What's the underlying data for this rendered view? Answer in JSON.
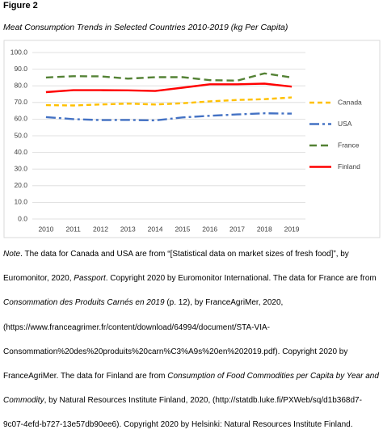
{
  "figure_label": "Figure 2",
  "figure_title": "Meat Consumption Trends in Selected Countries 2010-2019 (kg Per Capita)",
  "chart_data": {
    "type": "line",
    "categories": [
      "2010",
      "2011",
      "2012",
      "2013",
      "2014",
      "2015",
      "2016",
      "2017",
      "2018",
      "2019"
    ],
    "series": [
      {
        "name": "Canada",
        "color": "#ffc000",
        "dash": "6 4",
        "values": [
          68.4,
          68.2,
          68.8,
          69.3,
          68.8,
          69.5,
          70.7,
          71.5,
          72.0,
          73.0
        ]
      },
      {
        "name": "USA",
        "color": "#4472c4",
        "dash": "12 4 3 4",
        "values": [
          61.2,
          60.0,
          59.4,
          59.5,
          59.2,
          61.0,
          62.0,
          62.8,
          63.5,
          63.3
        ]
      },
      {
        "name": "France",
        "color": "#548235",
        "dash": "9 5",
        "values": [
          85.0,
          85.8,
          85.7,
          84.3,
          85.2,
          85.2,
          83.4,
          83.1,
          87.5,
          85.0
        ]
      },
      {
        "name": "Finland",
        "color": "#ff0000",
        "dash": "none",
        "values": [
          76.2,
          77.4,
          77.4,
          77.3,
          76.9,
          78.9,
          80.9,
          80.9,
          81.3,
          79.5
        ]
      }
    ],
    "ylim": [
      0,
      100
    ],
    "yticks": [
      {
        "value": 0,
        "label": "0.0"
      },
      {
        "value": 10,
        "label": "10.0"
      },
      {
        "value": 20,
        "label": "20.0"
      },
      {
        "value": 30,
        "label": "30.0"
      },
      {
        "value": 40,
        "label": "40.0"
      },
      {
        "value": 50,
        "label": "50.0"
      },
      {
        "value": 60,
        "label": "60.0"
      },
      {
        "value": 70,
        "label": "70.0"
      },
      {
        "value": 80,
        "label": "80.0"
      },
      {
        "value": 90,
        "label": "90.0"
      },
      {
        "value": 100,
        "label": "100.0"
      }
    ],
    "grid": true,
    "legend": "right"
  },
  "note": [
    {
      "text": "Note",
      "italic": true
    },
    {
      "text": ". The data for Canada and USA are from “[Statistical data on market sizes of fresh food]”, by Euromonitor, 2020, ",
      "italic": false
    },
    {
      "text": "Passport",
      "italic": true
    },
    {
      "text": ". Copyright 2020 by Euromonitor International. The data for France are from ",
      "italic": false
    },
    {
      "text": "Consommation des Produits Carnés en 2019",
      "italic": true
    },
    {
      "text": " (p. 12), by FranceAgriMer, 2020, (https://www.franceagrimer.fr/content/download/64994/document/STA-VIA-Consommation%20des%20produits%20carn%C3%A9s%20en%202019.pdf). Copyright 2020 by FranceAgriMer. The data for Finland are from ",
      "italic": false
    },
    {
      "text": "Consumption of Food Commodities per Capita by Year and Commodity",
      "italic": true
    },
    {
      "text": ", by Natural Resources Institute Finland, 2020, (http://statdb.luke.fi/PXWeb/sq/d1b368d7-9c07-4efd-b727-13e57db90ee6). Copyright 2020 by Helsinki: Natural Resources Institute Finland.",
      "italic": false
    }
  ]
}
